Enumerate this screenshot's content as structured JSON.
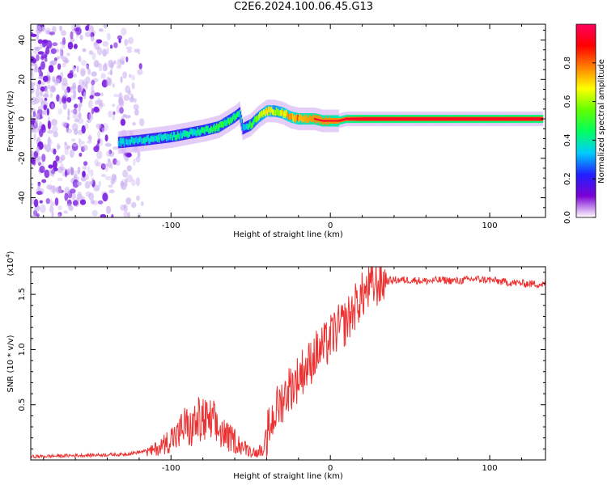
{
  "title": "C2E6.2024.100.06.45.G13",
  "chart_data": [
    {
      "type": "heatmap",
      "panel": "spectrogram",
      "xlabel": "Height of straight line (km)",
      "ylabel": "Frequency (Hz)",
      "xlim": [
        -188,
        135
      ],
      "ylim": [
        -50,
        48
      ],
      "x_ticks": [
        -100,
        0,
        100
      ],
      "x_tick_labels": [
        "-100",
        "0",
        "100"
      ],
      "y_ticks": [
        -40,
        -20,
        0,
        20,
        40
      ],
      "y_tick_labels": [
        "-40",
        "-20",
        "0",
        "20",
        "40"
      ],
      "colorbar": {
        "label": "Normalized spectral amplitude",
        "range": [
          0,
          1
        ],
        "ticks": [
          0.0,
          0.2,
          0.4,
          0.6,
          0.8
        ],
        "tick_labels": [
          "0.0",
          "0.2",
          "0.4",
          "0.6",
          "0.8"
        ],
        "colormap": [
          "#ffffff",
          "#7b00d4",
          "#2020ff",
          "#00ccff",
          "#00ff60",
          "#60ff00",
          "#ffff00",
          "#ff8000",
          "#ff0000",
          "#ff0060"
        ]
      },
      "noise_region_x": [
        -188,
        -128
      ],
      "ridge": {
        "x": [
          -133,
          -120,
          -100,
          -80,
          -70,
          -60,
          -57,
          -55,
          -50,
          -45,
          -40,
          -35,
          -30,
          -25,
          -20,
          -10,
          -5,
          0,
          5,
          10,
          20,
          40,
          60,
          80,
          100,
          120,
          133
        ],
        "freq": [
          -12,
          -11,
          -9,
          -6,
          -4,
          1,
          3,
          -5,
          -3,
          1,
          4,
          4,
          3,
          1,
          0,
          0,
          -1,
          -1,
          -1,
          0,
          0,
          0,
          0,
          0,
          0,
          0,
          0
        ],
        "amplitude": [
          0.3,
          0.35,
          0.35,
          0.4,
          0.45,
          0.45,
          0.35,
          0.3,
          0.45,
          0.6,
          0.7,
          0.6,
          0.7,
          0.8,
          0.85,
          0.9,
          0.9,
          0.9,
          0.9,
          0.95,
          1.0,
          1.0,
          1.0,
          1.0,
          1.0,
          1.0,
          1.0
        ]
      }
    },
    {
      "type": "line",
      "panel": "snr",
      "xlabel": "Height of straight line (km)",
      "ylabel": "SNR (10 * v/v)",
      "y_multiplier_label": "(x10",
      "y_multiplier_exp": "4",
      "y_multiplier_close": ")",
      "xlim": [
        -188,
        135
      ],
      "ylim": [
        0,
        17500
      ],
      "x_ticks": [
        -100,
        0,
        100
      ],
      "x_tick_labels": [
        "-100",
        "0",
        "100"
      ],
      "y_ticks": [
        5000,
        10000,
        15000
      ],
      "y_tick_labels": [
        "0.5",
        "1.0",
        "1.5"
      ],
      "line_color": "#ee3030",
      "series": [
        {
          "x": [
            -188,
            -160,
            -130,
            -120,
            -112,
            -105,
            -100,
            -95,
            -92,
            -88,
            -84,
            -80,
            -77,
            -74,
            -71,
            -68,
            -64,
            -60,
            -55,
            -50,
            -46,
            -43,
            -40,
            -37,
            -34,
            -30,
            -26,
            -22,
            -18,
            -14,
            -10,
            -6,
            -2,
            0,
            2,
            6,
            10,
            14,
            18,
            22,
            26,
            30,
            35,
            40,
            50,
            60,
            70,
            80,
            90,
            100,
            110,
            120,
            135
          ],
          "values": [
            300,
            400,
            500,
            700,
            900,
            1500,
            2200,
            2500,
            3500,
            3000,
            3800,
            4000,
            3600,
            3900,
            3000,
            2800,
            2200,
            2000,
            1300,
            900,
            700,
            1200,
            2000,
            3500,
            4500,
            5500,
            6500,
            7000,
            8000,
            8500,
            9500,
            10000,
            10500,
            11000,
            11500,
            12000,
            12500,
            13500,
            14500,
            15200,
            15700,
            16000,
            16200,
            16300,
            16300,
            16200,
            16300,
            16200,
            16400,
            16300,
            16100,
            16000,
            15900
          ]
        }
      ]
    }
  ]
}
